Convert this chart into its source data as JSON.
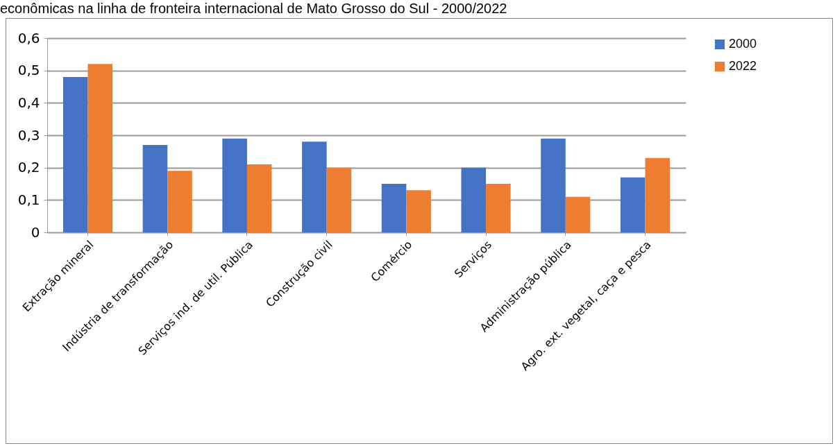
{
  "chart_data": {
    "type": "bar",
    "title": "econômicas na linha de fronteira internacional de Mato Grosso do Sul - 2000/2022",
    "categories": [
      "Extração mineral",
      "Indústria de transformação",
      "Serviços ind. de util. Pública",
      "Construção civil",
      "Comércio",
      "Serviços",
      "Administração pública",
      "Agro. ext. vegetal, caça e pesca"
    ],
    "series": [
      {
        "name": "2000",
        "color": "#4472c4",
        "values": [
          0.48,
          0.27,
          0.29,
          0.28,
          0.15,
          0.2,
          0.29,
          0.17
        ]
      },
      {
        "name": "2022",
        "color": "#ed7d31",
        "values": [
          0.52,
          0.19,
          0.21,
          0.2,
          0.13,
          0.15,
          0.11,
          0.23
        ]
      }
    ],
    "ylim": [
      0,
      0.6
    ],
    "yticks": [
      {
        "value": 0,
        "label": "0"
      },
      {
        "value": 0.1,
        "label": "0,1"
      },
      {
        "value": 0.2,
        "label": "0,2"
      },
      {
        "value": 0.3,
        "label": "0,3"
      },
      {
        "value": 0.4,
        "label": "0,4"
      },
      {
        "value": 0.5,
        "label": "0,5"
      },
      {
        "value": 0.6,
        "label": "0,6"
      }
    ],
    "grid": "y",
    "legend": "right"
  }
}
